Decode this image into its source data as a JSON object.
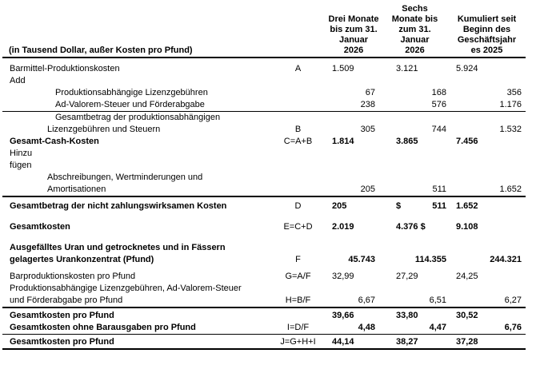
{
  "table": {
    "header": {
      "label_column": "(in Tausend Dollar, außer Kosten pro Pfund)",
      "periods": [
        "Drei Monate\nbis zum 31.\nJanuar\n2026",
        "Sechs\nMonate bis\nzum 31.\nJanuar\n2026",
        "Kumuliert seit\nBeginn des\nGeschäftsjahr\nes 2025"
      ]
    },
    "rows": [
      {
        "label_lines": [
          "Barmittel-Produktionskosten"
        ],
        "formula": "A",
        "values": [
          "1.509",
          "3.121",
          "5.924"
        ]
      },
      {
        "label_lines": [
          "Add"
        ],
        "formula": "",
        "values": [
          "",
          "",
          ""
        ]
      },
      {
        "label_lines": [
          "Produktionsabhängige Lizenzgebühren"
        ],
        "formula": "",
        "values": [
          "67",
          "168",
          "356"
        ]
      },
      {
        "label_lines": [
          "Ad-Valorem-Steuer und Förderabgabe"
        ],
        "formula": "",
        "values": [
          "238",
          "576",
          "1.176"
        ]
      },
      {
        "label_lines": [
          "Gesamtbetrag der produktionsabhängigen",
          "Lizenzgebühren und Steuern"
        ],
        "formula": "B",
        "values": [
          "305",
          "744",
          "1.532"
        ]
      },
      {
        "label_lines": [
          "Gesamt-Cash-Kosten"
        ],
        "formula": "C=A+B",
        "values": [
          "1.814",
          "3.865",
          "7.456"
        ]
      },
      {
        "label_lines": [
          "Hinzu",
          "fügen"
        ],
        "formula": "",
        "values": [
          "",
          "",
          ""
        ]
      },
      {
        "label_lines": [
          "Abschreibungen, Wertminderungen und",
          "Amortisationen"
        ],
        "formula": "",
        "values": [
          "205",
          "511",
          "1.652"
        ]
      },
      {
        "label_lines": [
          "Gesamtbetrag der nicht zahlungswirksamen Kosten"
        ],
        "formula": "D",
        "currency_symbol": "$",
        "values": [
          "205",
          "511",
          "1.652"
        ]
      },
      {
        "label_lines": [
          "Gesamtkosten"
        ],
        "formula": "E=C+D",
        "values": [
          "2.019",
          "4.376 $",
          "9.108"
        ]
      },
      {
        "label_lines": [
          "Ausgefälltes Uran und getrocknetes und in Fässern",
          "gelagertes Urankonzentrat (Pfund)"
        ],
        "formula": "F",
        "values": [
          "45.743",
          "114.355",
          "244.321"
        ]
      },
      {
        "label_lines": [
          "Barproduktionskosten pro Pfund"
        ],
        "formula": "G=A/F",
        "values": [
          "32,99",
          "27,29",
          "24,25"
        ]
      },
      {
        "label_lines": [
          "Produktionsabhängige Lizenzgebühren, Ad-Valorem-Steuer",
          "und Förderabgabe pro Pfund"
        ],
        "formula": "H=B/F",
        "values": [
          "6,67",
          "6,51",
          "6,27"
        ]
      },
      {
        "label_lines": [
          "Gesamtkosten pro Pfund"
        ],
        "formula": "",
        "values": [
          "39,66",
          "33,80",
          "30,52"
        ]
      },
      {
        "label_lines": [
          "Gesamtkosten ohne Barausgaben pro Pfund"
        ],
        "formula": "I=D/F",
        "values": [
          "4,48",
          "4,47",
          "6,76"
        ]
      },
      {
        "label_lines": [
          "Gesamtkosten pro Pfund"
        ],
        "formula": "J=G+H+I",
        "values": [
          "44,14",
          "38,27",
          "37,28"
        ]
      }
    ]
  }
}
